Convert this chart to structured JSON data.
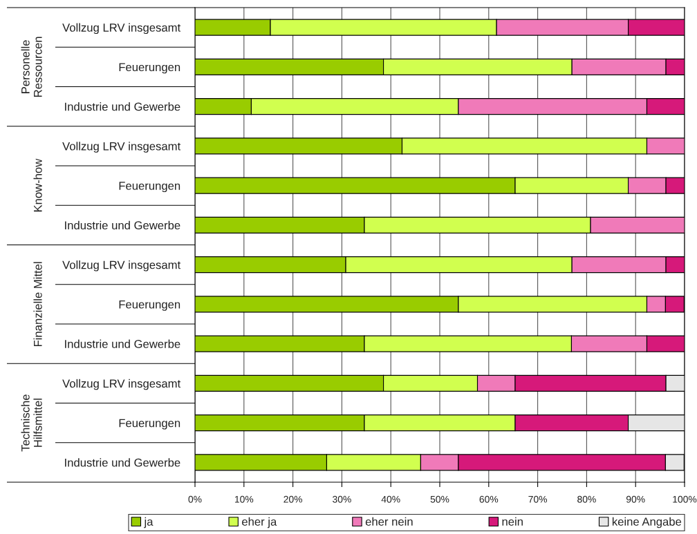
{
  "chart_data": {
    "type": "bar",
    "orientation": "horizontal",
    "stacked": true,
    "categories": [
      "Vollzug LRV insgesamt",
      "Feuerungen",
      "Industrie und Gewerbe",
      "Vollzug LRV insgesamt",
      "Feuerungen",
      "Industrie und Gewerbe",
      "Vollzug LRV insgesamt",
      "Feuerungen",
      "Industrie und Gewerbe",
      "Vollzug LRV insgesamt",
      "Feuerungen",
      "Industrie und Gewerbe"
    ],
    "series": [
      {
        "name": "ja",
        "color": "#99cc00",
        "values": [
          15.4,
          38.5,
          11.5,
          42.3,
          65.4,
          34.6,
          30.8,
          53.8,
          34.6,
          38.5,
          34.6,
          26.9
        ]
      },
      {
        "name": "eher ja",
        "color": "#d1ff4f",
        "values": [
          46.2,
          38.5,
          42.3,
          50.0,
          23.1,
          46.2,
          46.2,
          38.5,
          42.3,
          19.2,
          30.8,
          19.2
        ]
      },
      {
        "name": "eher nein",
        "color": "#f07ab9",
        "values": [
          26.9,
          19.2,
          38.5,
          7.7,
          7.7,
          19.2,
          19.2,
          3.8,
          15.4,
          7.7,
          0,
          7.7
        ]
      },
      {
        "name": "nein",
        "color": "#d6197a",
        "values": [
          11.5,
          3.8,
          7.7,
          0,
          3.8,
          0,
          3.8,
          3.8,
          7.7,
          30.8,
          23.1,
          42.3
        ]
      },
      {
        "name": "keine Angabe",
        "color": "#e6e6e6",
        "values": [
          0,
          0,
          0,
          0,
          0,
          0,
          0,
          0,
          0,
          3.8,
          11.5,
          3.8
        ]
      }
    ],
    "xlim": [
      0,
      100
    ],
    "xticks": [
      {
        "value": 0,
        "label": "0%"
      },
      {
        "value": 10,
        "label": "10%"
      },
      {
        "value": 20,
        "label": "20%"
      },
      {
        "value": 30,
        "label": "30%"
      },
      {
        "value": 40,
        "label": "40%"
      },
      {
        "value": 50,
        "label": "50%"
      },
      {
        "value": 60,
        "label": "60%"
      },
      {
        "value": 70,
        "label": "70%"
      },
      {
        "value": 80,
        "label": "80%"
      },
      {
        "value": 90,
        "label": "90%"
      },
      {
        "value": 100,
        "label": "100%"
      }
    ],
    "grid": "x",
    "legend": "bottom",
    "annotations": [
      "Personelle\nRessourcen",
      "Know-how",
      "Finanzielle Mittel",
      "Technische\nHilfsmittel"
    ]
  }
}
